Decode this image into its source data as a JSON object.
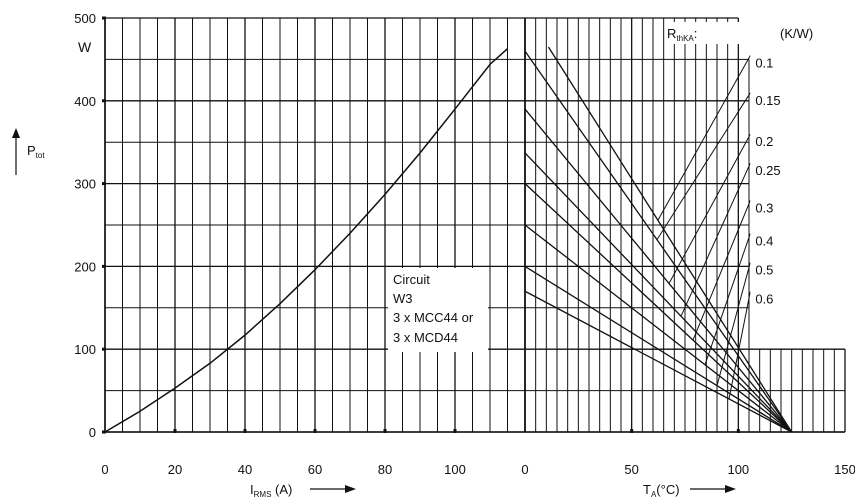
{
  "chart_data": [
    {
      "type": "line",
      "title": "",
      "ylabel": "P",
      "ylabel_sub": "tot",
      "yunit": "W",
      "ylim": [
        0,
        500
      ],
      "yticks": [
        "0",
        "100",
        "200",
        "300",
        "400",
        "500"
      ],
      "xlabel": "I",
      "xlabel_sub": "RMS",
      "xunit": "(A)",
      "xlim": [
        0,
        120
      ],
      "xticks": [
        "0",
        "20",
        "40",
        "60",
        "80",
        "100"
      ],
      "grid": true,
      "series": [
        {
          "x": [
            0,
            10,
            20,
            30,
            40,
            50,
            60,
            70,
            80,
            90,
            100,
            110,
            115
          ],
          "y": [
            0,
            25,
            53,
            83,
            117,
            155,
            196,
            240,
            287,
            337,
            390,
            444,
            463
          ]
        }
      ],
      "annotation": [
        "Circuit",
        "W3",
        "3 x MCC44 or",
        "3 x MCD44"
      ]
    },
    {
      "type": "line",
      "title": "",
      "xlabel": "T",
      "xlabel_sub": "A",
      "xunit": "(°C)",
      "xlim": [
        0,
        150
      ],
      "xticks": [
        "0",
        "50",
        "100",
        "150"
      ],
      "ylim": [
        0,
        500
      ],
      "grid": true,
      "legend_title": "R",
      "legend_title_sub": "thKA",
      "legend_unit": "(K/W)",
      "convergence_point": [
        125,
        0
      ],
      "series": [
        {
          "name": "0.1",
          "start": [
            11,
            465
          ],
          "label_at": [
            100,
            445
          ]
        },
        {
          "name": "0.15",
          "start": [
            0,
            460
          ],
          "label_at": [
            100,
            400
          ]
        },
        {
          "name": "0.2",
          "start": [
            0,
            390
          ],
          "label_at": [
            100,
            350
          ]
        },
        {
          "name": "0.25",
          "start": [
            0,
            337
          ],
          "label_at": [
            100,
            315
          ]
        },
        {
          "name": "0.3",
          "start": [
            0,
            300
          ],
          "label_at": [
            100,
            270
          ]
        },
        {
          "name": "0.4",
          "start": [
            0,
            250
          ],
          "label_at": [
            100,
            230
          ]
        },
        {
          "name": "0.5",
          "start": [
            0,
            200
          ],
          "label_at": [
            100,
            195
          ]
        },
        {
          "name": "0.6",
          "start": [
            0,
            170
          ],
          "label_at": [
            100,
            160
          ]
        }
      ]
    }
  ]
}
